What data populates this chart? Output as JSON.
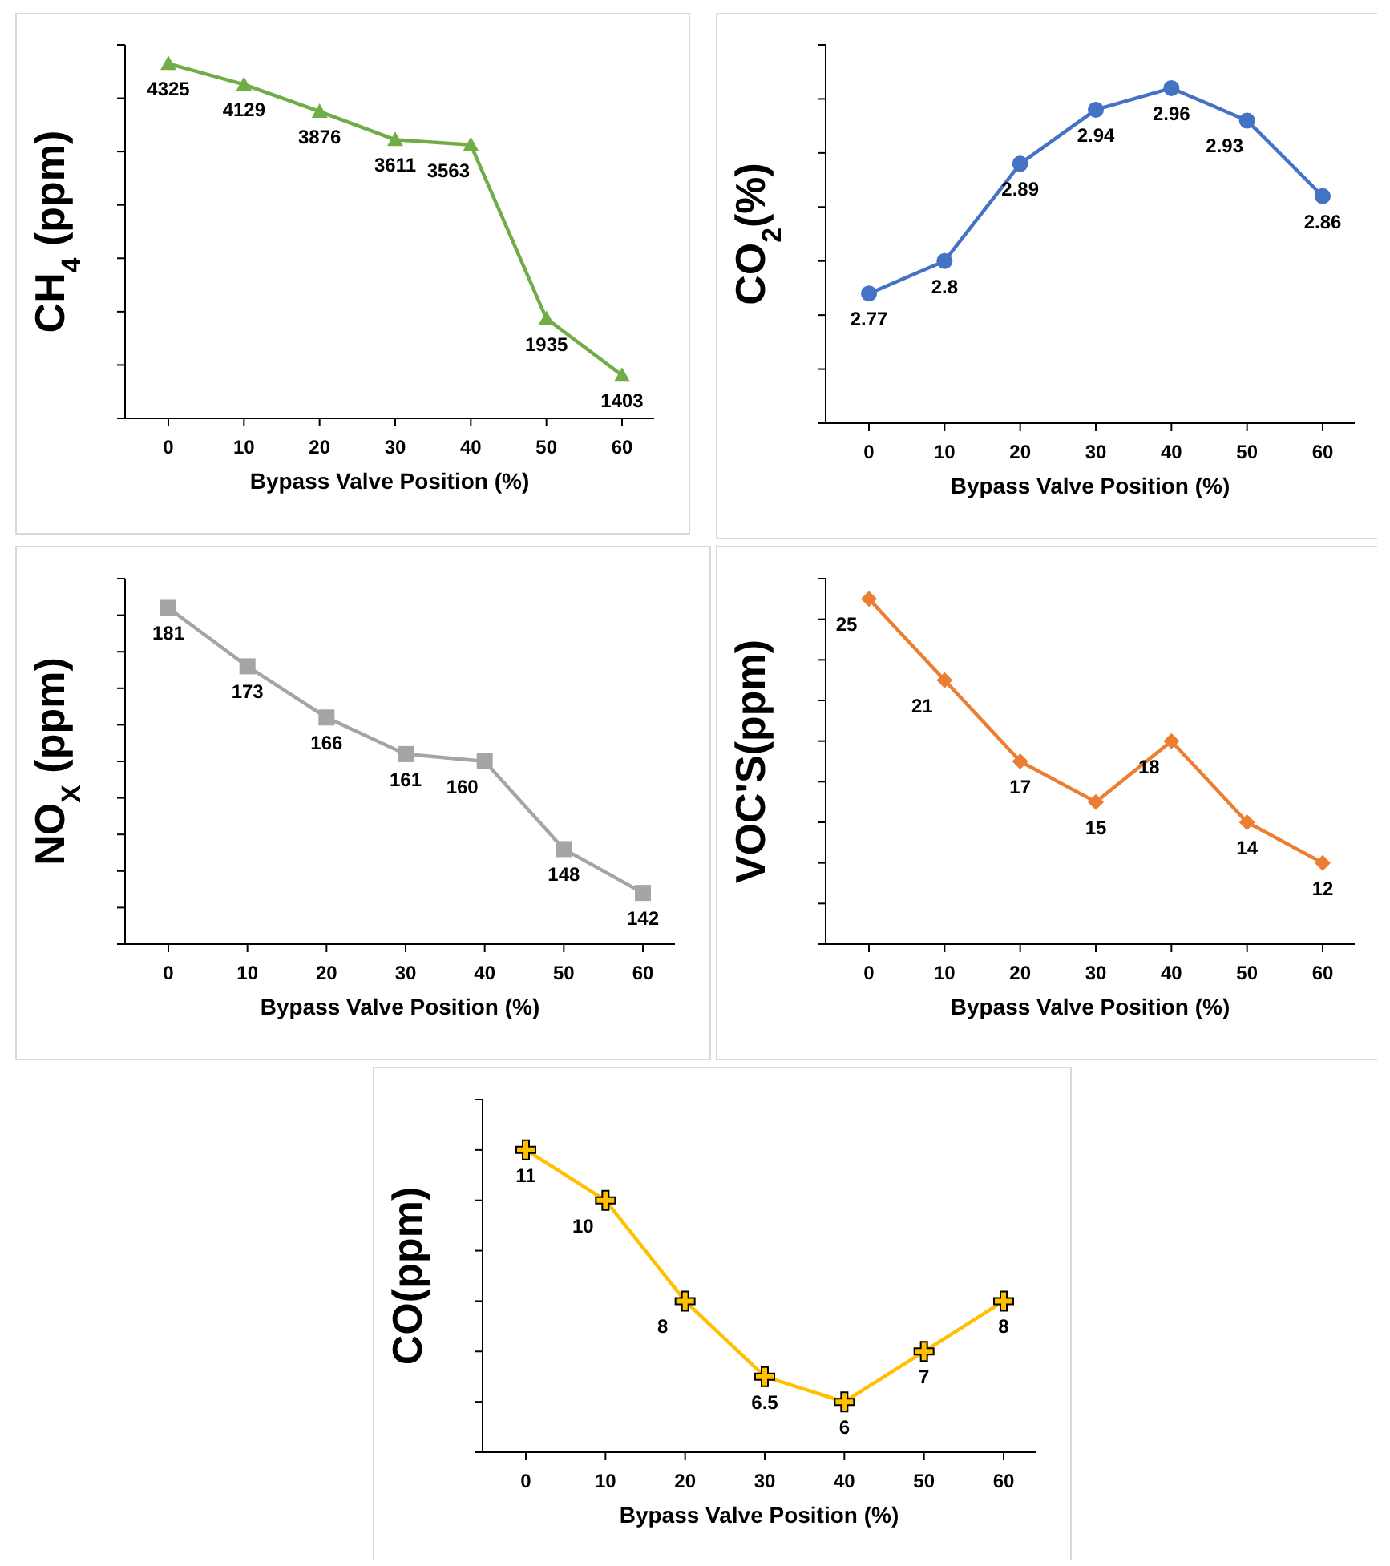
{
  "chart_data": [
    {
      "type": "line",
      "xlabel": "Bypass Valve Position (%)",
      "ylabel": "CH$_{4}$ (ppm)",
      "categories": [
        "0",
        "10",
        "20",
        "30",
        "40",
        "50",
        "60"
      ],
      "series": [
        {
          "color": "#70ad47",
          "values": [
            4325,
            4129,
            3876,
            3611,
            3563,
            1935,
            1403
          ]
        }
      ],
      "ylim": [
        1000,
        4500
      ],
      "yticks": [
        {
          "value": 1000,
          "label": null
        },
        {
          "value": 1500,
          "label": null
        },
        {
          "value": 2000,
          "label": null
        },
        {
          "value": 2500,
          "label": null
        },
        {
          "value": 3000,
          "label": null
        },
        {
          "value": 3500,
          "label": null
        },
        {
          "value": 4000,
          "label": null
        },
        {
          "value": 4500,
          "label": null
        }
      ],
      "tick_labels": "x",
      "marker": "triangle",
      "data_labels": true
    },
    {
      "type": "line",
      "xlabel": "Bypass Valve Position (%)",
      "ylabel": "CO$_{2}$(%)",
      "categories": [
        "0",
        "10",
        "20",
        "30",
        "40",
        "50",
        "60"
      ],
      "series": [
        {
          "color": "#4472c4",
          "values": [
            2.77,
            2.8,
            2.89,
            2.94,
            2.96,
            2.93,
            2.86
          ]
        }
      ],
      "ylim": [
        2.65,
        3.0
      ],
      "yticks": [
        {
          "value": 2.65,
          "label": null
        },
        {
          "value": 2.7,
          "label": null
        },
        {
          "value": 2.75,
          "label": null
        },
        {
          "value": 2.8,
          "label": null
        },
        {
          "value": 2.85,
          "label": null
        },
        {
          "value": 2.9,
          "label": null
        },
        {
          "value": 2.95,
          "label": null
        },
        {
          "value": 3.0,
          "label": null
        }
      ],
      "tick_labels": "x",
      "marker": "circle",
      "data_labels": true
    },
    {
      "type": "line",
      "xlabel": "Bypass Valve Position (%)",
      "ylabel": "NO$_{X}$ (ppm)",
      "categories": [
        "0",
        "10",
        "20",
        "30",
        "40",
        "50",
        "60"
      ],
      "series": [
        {
          "color": "#a5a5a5",
          "values": [
            181,
            173,
            166,
            161,
            160,
            148,
            142
          ]
        }
      ],
      "ylim": [
        135,
        185
      ],
      "yticks": [
        {
          "value": 135,
          "label": null
        },
        {
          "value": 140,
          "label": null
        },
        {
          "value": 145,
          "label": null
        },
        {
          "value": 150,
          "label": null
        },
        {
          "value": 155,
          "label": null
        },
        {
          "value": 160,
          "label": null
        },
        {
          "value": 165,
          "label": null
        },
        {
          "value": 170,
          "label": null
        },
        {
          "value": 175,
          "label": null
        },
        {
          "value": 180,
          "label": null
        },
        {
          "value": 185,
          "label": null
        }
      ],
      "tick_labels": "x",
      "marker": "square",
      "data_labels": true
    },
    {
      "type": "line",
      "xlabel": "Bypass Valve Position (%)",
      "ylabel": "VOC'S(ppm)",
      "categories": [
        "0",
        "10",
        "20",
        "30",
        "40",
        "50",
        "60"
      ],
      "series": [
        {
          "color": "#ed7d31",
          "values": [
            25,
            21,
            17,
            15,
            18,
            14,
            12
          ]
        }
      ],
      "ylim": [
        8,
        26
      ],
      "yticks": [
        {
          "value": 8,
          "label": null
        },
        {
          "value": 10,
          "label": null
        },
        {
          "value": 12,
          "label": null
        },
        {
          "value": 14,
          "label": null
        },
        {
          "value": 16,
          "label": null
        },
        {
          "value": 18,
          "label": null
        },
        {
          "value": 20,
          "label": null
        },
        {
          "value": 22,
          "label": null
        },
        {
          "value": 24,
          "label": null
        },
        {
          "value": 26,
          "label": null
        }
      ],
      "tick_labels": "x",
      "marker": "diamond",
      "data_labels": true
    },
    {
      "type": "line",
      "xlabel": "Bypass Valve Position (%)",
      "ylabel": "CO(ppm)",
      "categories": [
        "0",
        "10",
        "20",
        "30",
        "40",
        "50",
        "60"
      ],
      "series": [
        {
          "color": "#ffc000",
          "values": [
            11,
            10,
            8,
            6.5,
            6,
            7,
            8
          ]
        }
      ],
      "ylim": [
        5,
        12
      ],
      "yticks": [
        {
          "value": 5,
          "label": null
        },
        {
          "value": 6,
          "label": null
        },
        {
          "value": 7,
          "label": null
        },
        {
          "value": 8,
          "label": null
        },
        {
          "value": 9,
          "label": null
        },
        {
          "value": 10,
          "label": null
        },
        {
          "value": 11,
          "label": null
        },
        {
          "value": 12,
          "label": null
        }
      ],
      "tick_labels": "x",
      "marker": "cross",
      "data_labels": true
    }
  ]
}
